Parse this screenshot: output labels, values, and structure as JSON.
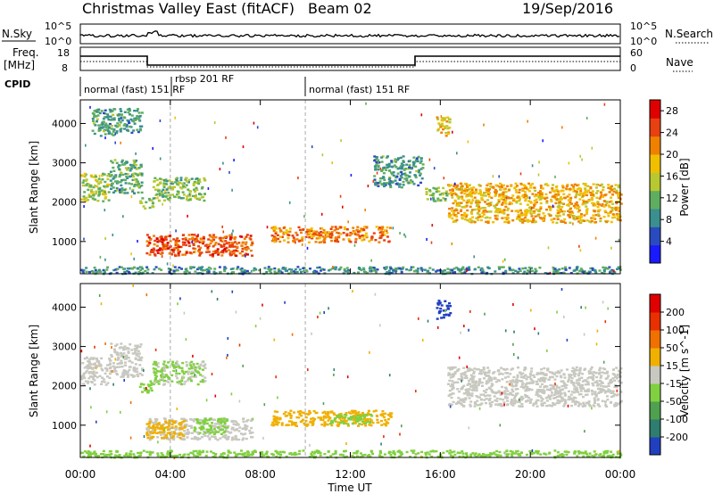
{
  "header": {
    "title": "Christmas Valley East (fitACF)",
    "beam": "Beam 02",
    "date": "19/Sep/2016"
  },
  "strip_labels": {
    "nsky": "N.Sky",
    "nsky_ticks": [
      "10^5",
      "10^0"
    ],
    "nsearch": "N.Search",
    "nsearch_ticks": [
      "10^5",
      "10^0"
    ],
    "freq": "Freq.",
    "freq_unit": "[MHz]",
    "freq_ticks": [
      "18",
      "8"
    ],
    "nave": "Nave",
    "nave_ticks": [
      "60",
      "0"
    ],
    "cpid": "CPID"
  },
  "cpid_segments": [
    {
      "label": "normal (fast) 151 RF",
      "start_hour": 0,
      "end_hour": 4.0
    },
    {
      "label": "rbsp 201 RF",
      "start_hour": 4.0,
      "end_hour": 10.0
    },
    {
      "label": "normal (fast) 151 RF",
      "start_hour": 10.0,
      "end_hour": 24.0
    }
  ],
  "chart_data": [
    {
      "type": "heatmap",
      "panel": "power",
      "xlabel": "Time UT",
      "ylabel": "Slant Range [km]",
      "xlim_hours": [
        0,
        24
      ],
      "ylim": [
        180,
        4600
      ],
      "x_ticks": [
        "00:00",
        "04:00",
        "08:00",
        "12:00",
        "16:00",
        "20:00",
        "00:00"
      ],
      "y_ticks": [
        "1000",
        "2000",
        "3000",
        "4000"
      ],
      "colorbar": {
        "label": "Power [dB]",
        "ticks": [
          "4",
          "8",
          "12",
          "16",
          "20",
          "24",
          "28"
        ],
        "range": [
          0,
          30
        ],
        "colors": [
          "#1a1aff",
          "#2a4bc0",
          "#3b8f8f",
          "#5fae5f",
          "#b8c830",
          "#f0c000",
          "#f08000",
          "#e84010",
          "#e00000"
        ]
      },
      "regions": [
        {
          "t0": 0.0,
          "t1": 1.3,
          "r0": 2050,
          "r1": 2750,
          "value": 14
        },
        {
          "t0": 1.3,
          "t1": 2.7,
          "r0": 2250,
          "r1": 3100,
          "value": 11
        },
        {
          "t0": 0.5,
          "t1": 2.7,
          "r0": 3700,
          "r1": 4400,
          "value": 10
        },
        {
          "t0": 2.6,
          "t1": 3.2,
          "r0": 1850,
          "r1": 2150,
          "value": 14
        },
        {
          "t0": 3.2,
          "t1": 5.5,
          "r0": 2050,
          "r1": 2650,
          "value": 13
        },
        {
          "t0": 2.9,
          "t1": 7.6,
          "r0": 650,
          "r1": 1200,
          "value": 24
        },
        {
          "t0": 8.4,
          "t1": 13.8,
          "r0": 1000,
          "r1": 1400,
          "value": 22
        },
        {
          "t0": 13.0,
          "t1": 15.2,
          "r0": 2400,
          "r1": 3200,
          "value": 10
        },
        {
          "t0": 15.3,
          "t1": 16.3,
          "r0": 2050,
          "r1": 2400,
          "value": 13
        },
        {
          "t0": 16.3,
          "t1": 24.0,
          "r0": 1500,
          "r1": 2500,
          "value": 19
        },
        {
          "t0": 15.8,
          "t1": 16.4,
          "r0": 3700,
          "r1": 4200,
          "value": 18
        },
        {
          "t0": 0.0,
          "t1": 24.0,
          "r0": 200,
          "r1": 380,
          "value": 9
        }
      ]
    },
    {
      "type": "heatmap",
      "panel": "velocity",
      "xlabel": "Time UT",
      "ylabel": "Slant Range [km]",
      "xlim_hours": [
        0,
        24
      ],
      "ylim": [
        180,
        4600
      ],
      "x_ticks": [
        "00:00",
        "04:00",
        "08:00",
        "12:00",
        "16:00",
        "20:00",
        "00:00"
      ],
      "y_ticks": [
        "1000",
        "2000",
        "3000",
        "4000"
      ],
      "colorbar": {
        "label": "Velocity [m s^-1]",
        "ticks": [
          "200",
          "100",
          "50",
          "15",
          "-15",
          "-50",
          "-100",
          "-200"
        ],
        "range": [
          -250,
          250
        ],
        "colors": [
          "#2040c0",
          "#2e7d6e",
          "#4fa04f",
          "#80d040",
          "#c8c8c0",
          "#f0b000",
          "#f07000",
          "#e83000",
          "#e00000"
        ]
      },
      "regions": [
        {
          "t0": 0.0,
          "t1": 1.3,
          "r0": 2050,
          "r1": 2750,
          "value": 0
        },
        {
          "t0": 1.3,
          "t1": 2.7,
          "r0": 2250,
          "r1": 3100,
          "value": 0
        },
        {
          "t0": 2.6,
          "t1": 3.2,
          "r0": 1850,
          "r1": 2150,
          "value": -40
        },
        {
          "t0": 3.2,
          "t1": 5.5,
          "r0": 2050,
          "r1": 2650,
          "value": -30
        },
        {
          "t0": 2.9,
          "t1": 7.6,
          "r0": 650,
          "r1": 1200,
          "value": 0
        },
        {
          "t0": 5.0,
          "t1": 6.5,
          "r0": 800,
          "r1": 1200,
          "value": -40
        },
        {
          "t0": 2.9,
          "t1": 4.6,
          "r0": 700,
          "r1": 1150,
          "value": 40
        },
        {
          "t0": 8.4,
          "t1": 13.8,
          "r0": 1000,
          "r1": 1400,
          "value": 40
        },
        {
          "t0": 11.0,
          "t1": 13.0,
          "r0": 1050,
          "r1": 1300,
          "value": -40
        },
        {
          "t0": 16.3,
          "t1": 24.0,
          "r0": 1500,
          "r1": 2500,
          "value": 0
        },
        {
          "t0": 15.8,
          "t1": 16.4,
          "r0": 3700,
          "r1": 4200,
          "value": -230
        },
        {
          "t0": 0.0,
          "t1": 24.0,
          "r0": 200,
          "r1": 380,
          "value": -40
        }
      ]
    }
  ]
}
